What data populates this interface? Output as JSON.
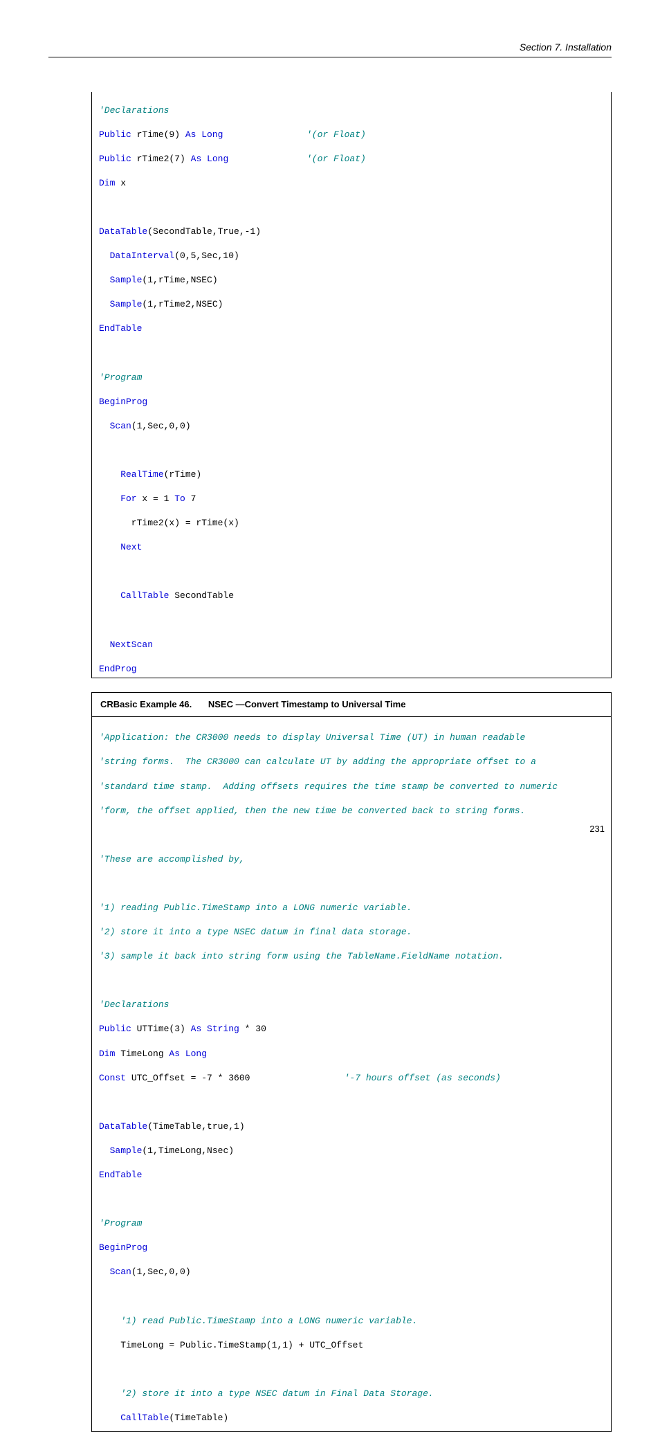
{
  "header": "Section 7.  Installation",
  "page_number": "231",
  "colors": {
    "keyword": "#0000d8",
    "comment": "#008080",
    "text": "#000000",
    "border": "#000000",
    "background": "#ffffff"
  },
  "fonts": {
    "body": "Verdana",
    "code": "Consolas",
    "code_size_pt": 10,
    "header_size_pt": 11
  },
  "box1": {
    "lines": {
      "l01a": "'Declarations",
      "l02a": "Public",
      "l02b": " rTime(9) ",
      "l02c": "As Long",
      "l02d": "'(or Float)",
      "l03a": "Public",
      "l03b": " rTime2(7) ",
      "l03c": "As Long",
      "l03d": "'(or Float)",
      "l04a": "Dim",
      "l04b": " x",
      "l06a": "DataTable",
      "l06b": "(SecondTable,True,-1)",
      "l07a": "  DataInterval",
      "l07b": "(0,5,Sec,10)",
      "l08a": "  Sample",
      "l08b": "(1,rTime,NSEC)",
      "l09a": "  Sample",
      "l09b": "(1,rTime2,NSEC)",
      "l10a": "EndTable",
      "l12a": "'Program",
      "l13a": "BeginProg",
      "l14a": "  Scan",
      "l14b": "(1,Sec,0,0)",
      "l16a": "    RealTime",
      "l16b": "(rTime)",
      "l17a": "    For",
      "l17b": " x = 1 ",
      "l17c": "To",
      "l17d": " 7",
      "l18a": "      rTime2(x) = rTime(x)",
      "l19a": "    Next",
      "l21a": "    CallTable",
      "l21b": " SecondTable",
      "l23a": "  NextScan",
      "l24a": "EndProg"
    }
  },
  "box2": {
    "title_num": "CRBasic Example 46.",
    "title_name": "NSEC —Convert Timestamp to Universal Time",
    "lines": {
      "c01": "'Application: the CR3000 needs to display Universal Time (UT) in human readable",
      "c02": "'string forms.  The CR3000 can calculate UT by adding the appropriate offset to a",
      "c03": "'standard time stamp.  Adding offsets requires the time stamp be converted to numeric",
      "c04": "'form, the offset applied, then the new time be converted back to string forms.",
      "c06": "'These are accomplished by,",
      "c08": "'1) reading Public.TimeStamp into a LONG numeric variable.",
      "c09": "'2) store it into a type NSEC datum in final data storage.",
      "c10": "'3) sample it back into string form using the TableName.FieldName notation.",
      "c12": "'Declarations",
      "c13a": "Public",
      "c13b": " UTTime(3) ",
      "c13c": "As String",
      "c13d": " * 30",
      "c14a": "Dim",
      "c14b": " TimeLong ",
      "c14c": "As Long",
      "c15a": "Const",
      "c15b": " UTC_Offset = -7 * 3600",
      "c15c": "'-7 hours offset (as seconds)",
      "c17a": "DataTable",
      "c17b": "(TimeTable,true,1)",
      "c18a": "  Sample",
      "c18b": "(1,TimeLong,Nsec)",
      "c19a": "EndTable",
      "c21a": "'Program",
      "c22a": "BeginProg",
      "c23a": "  Scan",
      "c23b": "(1,Sec,0,0)",
      "c25a": "    '1) read Public.TimeStamp into a LONG numeric variable.",
      "c26a": "    TimeLong = Public.TimeStamp(1,1) + UTC_Offset",
      "c28a": "    '2) store it into a type NSEC datum in Final Data Storage.",
      "c29a": "    CallTable",
      "c29b": "(TimeTable)"
    }
  }
}
